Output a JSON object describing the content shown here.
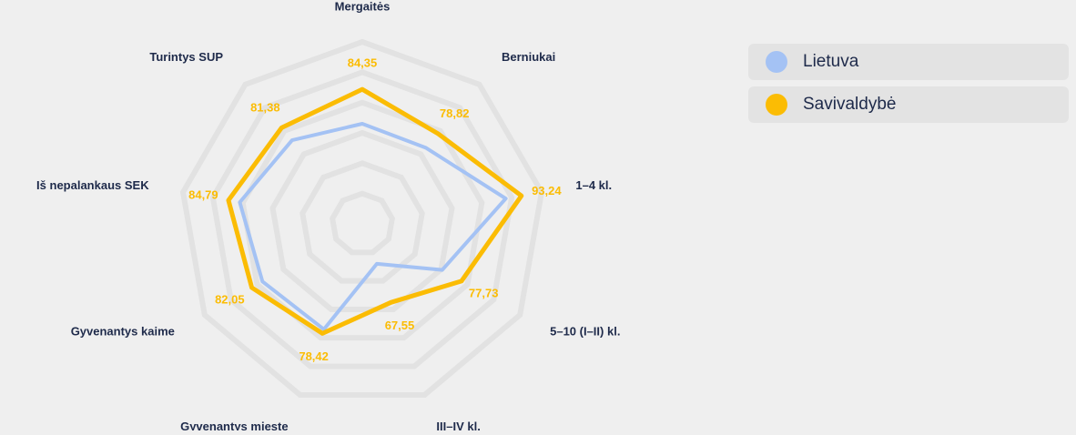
{
  "chart_data": {
    "type": "radar",
    "categories": [
      "Mergaitės",
      "Berniukai",
      "1–4 kl.",
      "5–10 (I–II) kl.",
      "III–IV kl.",
      "Gyvenantys mieste",
      "Gyvenantys kaime",
      "Iš nepalankaus SEK",
      "Turintys SUP"
    ],
    "series": [
      {
        "name": "Lietuva",
        "color": "#a4c2f4",
        "values": [
          73,
          72.7,
          88,
          70.4,
          54,
          77,
          78,
          81,
          76
        ]
      },
      {
        "name": "Savivaldybė",
        "color": "#fbbc04",
        "values": [
          84.35,
          78.82,
          93.24,
          77.73,
          67.55,
          78.42,
          82.05,
          84.79,
          81.38
        ],
        "value_labels": [
          "84,35",
          "78,82",
          "93,24",
          "77,73",
          "67,55",
          "78,42",
          "82,05",
          "84,79",
          "81,38"
        ]
      }
    ],
    "ylim": [
      40,
      100
    ],
    "yticks": [
      50,
      60,
      70,
      80,
      90,
      100
    ],
    "grid": true,
    "legend": "right"
  }
}
